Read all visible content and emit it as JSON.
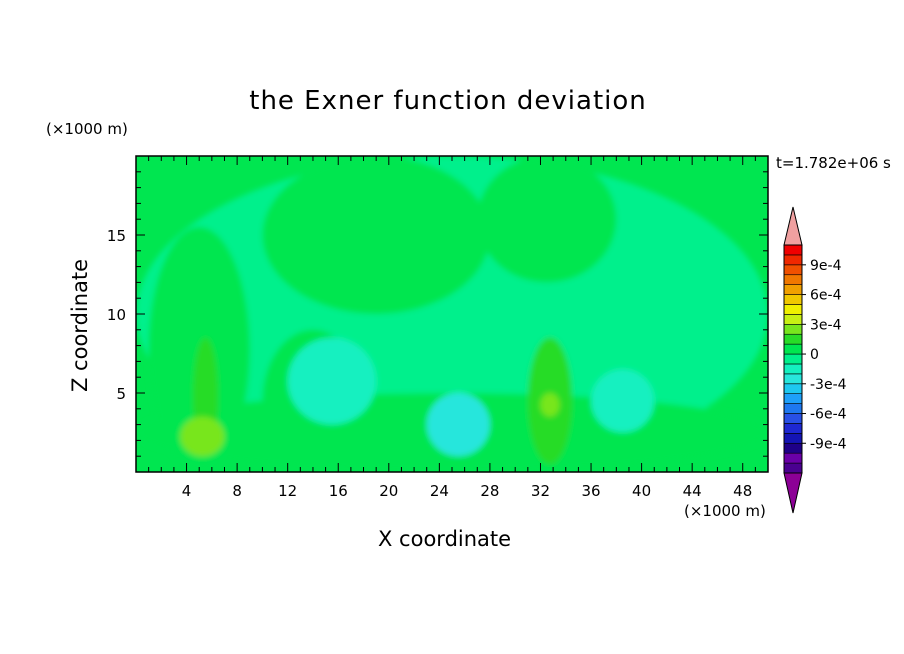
{
  "chart_data": {
    "type": "heatmap",
    "title": "the Exner function deviation",
    "xlabel": "X coordinate",
    "ylabel": "Z coordinate",
    "x_unit": "(×1000 m)",
    "y_unit": "(×1000 m)",
    "time_label": "t=1.782e+06 s",
    "xlim": [
      0,
      50
    ],
    "ylim": [
      0,
      20
    ],
    "x_ticks": [
      "4",
      "8",
      "12",
      "16",
      "20",
      "24",
      "28",
      "32",
      "36",
      "40",
      "44",
      "48"
    ],
    "y_ticks": [
      "5",
      "10",
      "15"
    ],
    "colorbar": {
      "ticks": [
        "9e-4",
        "6e-4",
        "3e-4",
        "0",
        "-3e-4",
        "-6e-4",
        "-9e-4"
      ],
      "levels": [
        -0.0012,
        -0.0011,
        -0.001,
        -0.0009,
        -0.0008,
        -0.0007,
        -0.0006,
        -0.0005,
        -0.0004,
        -0.0003,
        -0.0002,
        -0.0001,
        0,
        0.0001,
        0.0002,
        0.0003,
        0.0004,
        0.0005,
        0.0006,
        0.0007,
        0.0008,
        0.0009,
        0.001,
        0.0011
      ],
      "colors": [
        "#4a0090",
        "#6a00a8",
        "#1e0088",
        "#1414b4",
        "#1e28d2",
        "#2850e6",
        "#1e78f0",
        "#1ea0fa",
        "#1ec8f0",
        "#28e6dc",
        "#14f0c0",
        "#00f08c",
        "#00e650",
        "#28dc28",
        "#78e61e",
        "#c8f014",
        "#f0f000",
        "#f0c800",
        "#f0a000",
        "#f07800",
        "#f05000",
        "#f02800",
        "#f00000",
        "#f0a0a0"
      ],
      "under_color": "#8c0096",
      "over_color": "#f0a0a0"
    },
    "field_description_values": {
      "background": 0.0,
      "regions": [
        {
          "x": [
            0,
            50
          ],
          "z": [
            0,
            20
          ],
          "value": -5e-05
        },
        {
          "x": [
            1,
            9
          ],
          "z": [
            0,
            15.5
          ],
          "value": 5e-05
        },
        {
          "x": [
            10,
            18
          ],
          "z": [
            0,
            9
          ],
          "value": 5e-05
        },
        {
          "x": [
            10,
            28
          ],
          "z": [
            10,
            20
          ],
          "value": 5e-05
        },
        {
          "x": [
            27,
            38
          ],
          "z": [
            12,
            20
          ],
          "value": 5e-05
        },
        {
          "x": [
            0,
            50
          ],
          "z": [
            0,
            5
          ],
          "value": 5e-05
        },
        {
          "x": [
            4.5,
            6.5
          ],
          "z": [
            1,
            8.5
          ],
          "value": 0.00015
        },
        {
          "x": [
            3.5,
            7
          ],
          "z": [
            1,
            3.5
          ],
          "value": 0.00025
        },
        {
          "x": [
            31,
            34.5
          ],
          "z": [
            0.5,
            8.5
          ],
          "value": 0.00015
        },
        {
          "x": [
            32,
            33.5
          ],
          "z": [
            3.5,
            5
          ],
          "value": 0.00025
        },
        {
          "x": [
            12,
            19
          ],
          "z": [
            3,
            8.5
          ],
          "value": -0.00015
        },
        {
          "x": [
            23,
            28
          ],
          "z": [
            1,
            5
          ],
          "value": -0.00025
        },
        {
          "x": [
            36,
            41
          ],
          "z": [
            2.5,
            6.5
          ],
          "value": -0.00015
        }
      ]
    }
  }
}
